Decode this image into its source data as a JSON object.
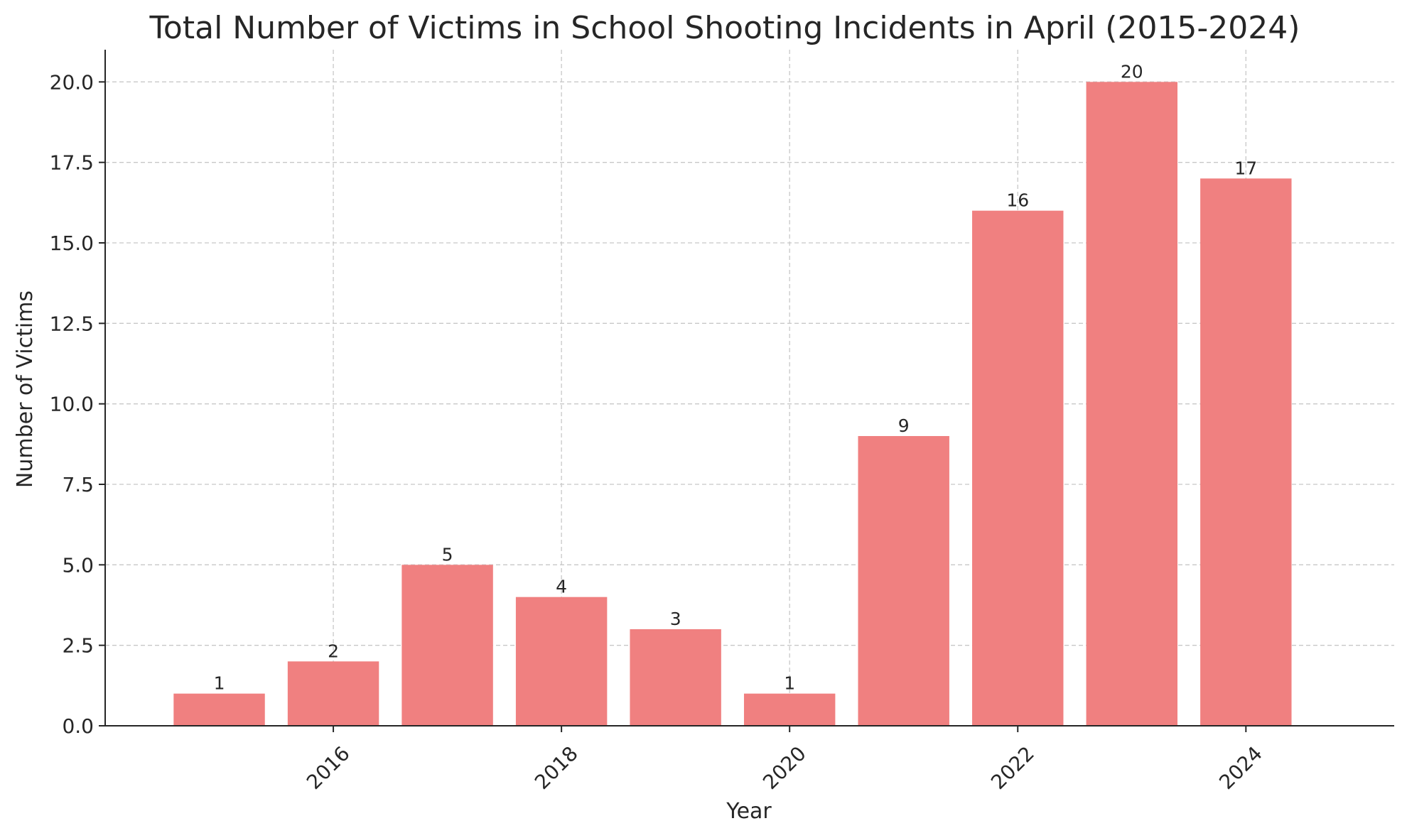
{
  "colors": {
    "bar": "#f08080",
    "text": "#262626",
    "grid": "#c8c8c8"
  },
  "chart_data": {
    "type": "bar",
    "title": "Total Number of Victims in School Shooting Incidents in April (2015-2024)",
    "xlabel": "Year",
    "ylabel": "Number of Victims",
    "categories": [
      2015,
      2016,
      2017,
      2018,
      2019,
      2020,
      2021,
      2022,
      2023,
      2024
    ],
    "values": [
      1,
      2,
      5,
      4,
      3,
      1,
      9,
      16,
      20,
      17
    ],
    "data_labels": [
      "1",
      "2",
      "5",
      "4",
      "3",
      "1",
      "9",
      "16",
      "20",
      "17"
    ],
    "xlim": [
      2014.0,
      2025.3
    ],
    "ylim": [
      0,
      21
    ],
    "x_ticks": [
      2016,
      2018,
      2020,
      2022,
      2024
    ],
    "x_tick_labels": [
      "2016",
      "2018",
      "2020",
      "2022",
      "2024"
    ],
    "y_ticks": [
      0,
      2.5,
      5,
      7.5,
      10,
      12.5,
      15,
      17.5,
      20
    ],
    "y_tick_labels": [
      "0.0",
      "2.5",
      "5.0",
      "7.5",
      "10.0",
      "12.5",
      "15.0",
      "17.5",
      "20.0"
    ],
    "grid": true,
    "bar_width": 0.8
  }
}
